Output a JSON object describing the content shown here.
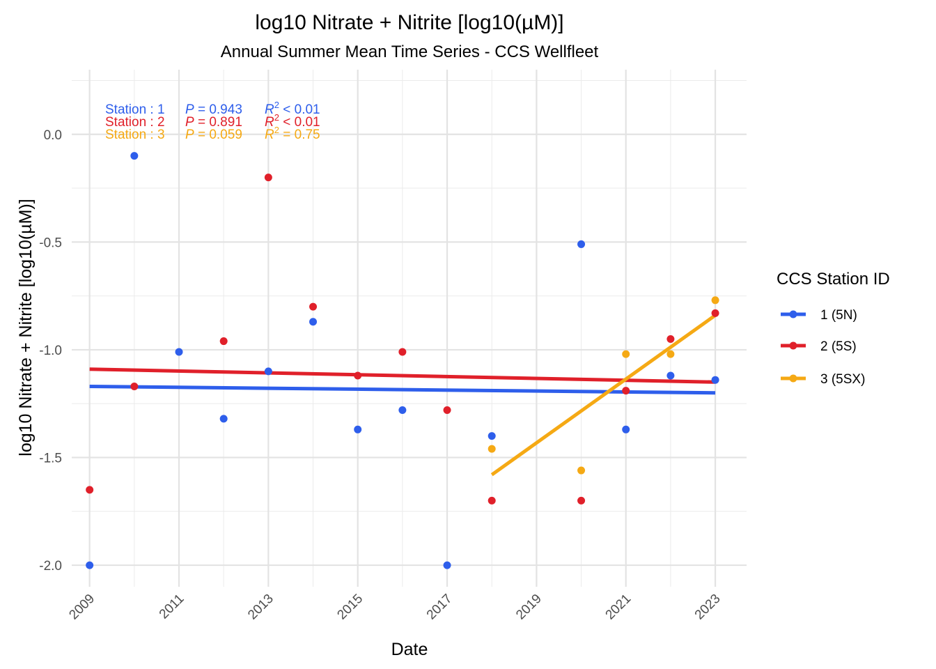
{
  "chart_data": {
    "type": "scatter",
    "title": "log10 Nitrate + Nitrite [log10(µM)]",
    "subtitle": "Annual Summer Mean Time Series - CCS Wellfleet",
    "xlabel": "Date",
    "ylabel": "log10 Nitrate + Nitrite [log10(µM)]",
    "xlim": [
      2008.6,
      2023.7
    ],
    "ylim": [
      -2.1,
      0.3
    ],
    "x_ticks": [
      2009,
      2011,
      2013,
      2015,
      2017,
      2019,
      2021,
      2023
    ],
    "x_tick_labels": [
      "2009",
      "2011",
      "2013",
      "2015",
      "2017",
      "2019",
      "2021",
      "2023"
    ],
    "y_ticks": [
      0.0,
      -0.5,
      -1.0,
      -1.5,
      -2.0
    ],
    "y_tick_labels": [
      "0.0",
      "-0.5",
      "-1.0",
      "-1.5",
      "-2.0"
    ],
    "grid": true,
    "legend": {
      "title": "CCS Station ID",
      "position": "right"
    },
    "series": [
      {
        "name": "1 (5N)",
        "color": "#2E5EEB",
        "points": [
          {
            "x": 2009,
            "y": -2.0
          },
          {
            "x": 2010,
            "y": -0.1
          },
          {
            "x": 2011,
            "y": -1.01
          },
          {
            "x": 2012,
            "y": -1.32
          },
          {
            "x": 2013,
            "y": -1.1
          },
          {
            "x": 2014,
            "y": -0.87
          },
          {
            "x": 2015,
            "y": -1.37
          },
          {
            "x": 2016,
            "y": -1.28
          },
          {
            "x": 2017,
            "y": -2.0
          },
          {
            "x": 2018,
            "y": -1.4
          },
          {
            "x": 2020,
            "y": -0.51
          },
          {
            "x": 2021,
            "y": -1.37
          },
          {
            "x": 2022,
            "y": -1.12
          },
          {
            "x": 2023,
            "y": -1.14
          }
        ],
        "trend": {
          "x": [
            2009,
            2023
          ],
          "y": [
            -1.17,
            -1.2
          ]
        },
        "annotation": {
          "station": "Station : 1",
          "p": "P = 0.943",
          "r2": "< 0.01"
        }
      },
      {
        "name": "2 (5S)",
        "color": "#E0202A",
        "points": [
          {
            "x": 2009,
            "y": -1.65
          },
          {
            "x": 2010,
            "y": -1.17
          },
          {
            "x": 2012,
            "y": -0.96
          },
          {
            "x": 2013,
            "y": -0.2
          },
          {
            "x": 2014,
            "y": -0.8
          },
          {
            "x": 2015,
            "y": -1.12
          },
          {
            "x": 2016,
            "y": -1.01
          },
          {
            "x": 2017,
            "y": -1.28
          },
          {
            "x": 2018,
            "y": -1.7
          },
          {
            "x": 2020,
            "y": -1.7
          },
          {
            "x": 2021,
            "y": -1.19
          },
          {
            "x": 2022,
            "y": -0.95
          },
          {
            "x": 2023,
            "y": -0.83
          }
        ],
        "trend": {
          "x": [
            2009,
            2023
          ],
          "y": [
            -1.09,
            -1.15
          ]
        },
        "annotation": {
          "station": "Station : 2",
          "p": "P = 0.891",
          "r2": "< 0.01"
        }
      },
      {
        "name": "3 (5SX)",
        "color": "#F5A914",
        "points": [
          {
            "x": 2018,
            "y": -1.46
          },
          {
            "x": 2020,
            "y": -1.56
          },
          {
            "x": 2021,
            "y": -1.02
          },
          {
            "x": 2022,
            "y": -1.02
          },
          {
            "x": 2023,
            "y": -0.77
          }
        ],
        "trend": {
          "x": [
            2018,
            2023
          ],
          "y": [
            -1.58,
            -0.84
          ]
        },
        "annotation": {
          "station": "Station : 3",
          "p": "P = 0.059",
          "r2": "= 0.75"
        }
      }
    ]
  }
}
